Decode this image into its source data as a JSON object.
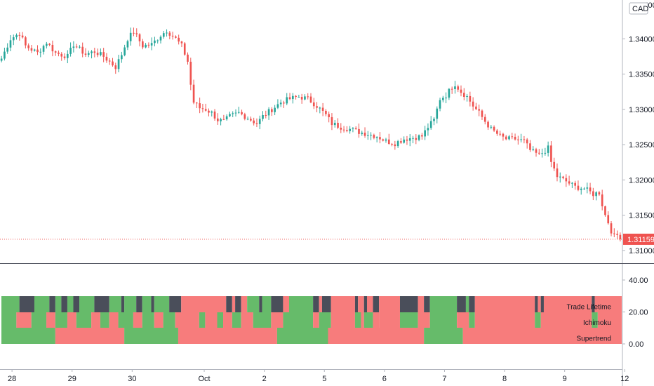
{
  "chart_data": [
    {
      "type": "candlestick",
      "title": "",
      "currency_label": "CAD",
      "price_axis": {
        "ticks": [
          1.31,
          1.315,
          1.32,
          1.325,
          1.33,
          1.335,
          1.34
        ],
        "tick_labels": [
          "1.31000",
          "1.31500",
          "1.32000",
          "1.32500",
          "1.33000",
          "1.33500",
          "1.34000"
        ],
        "partial_top_label": "1.34500",
        "ylim": [
          1.3085,
          1.3455
        ]
      },
      "last_price": 1.31159,
      "last_price_label": "1.31159",
      "time_axis": {
        "labels": [
          "28",
          "29",
          "30",
          "Oct",
          "2",
          "5",
          "6",
          "7",
          "8",
          "9",
          "12"
        ],
        "label_index": [
          4,
          24,
          44,
          68,
          88,
          108,
          128,
          148,
          168,
          188,
          208
        ]
      },
      "candle_count": 207,
      "close_anchors": [
        [
          0,
          1.3372
        ],
        [
          3,
          1.34
        ],
        [
          6,
          1.3408
        ],
        [
          8,
          1.339
        ],
        [
          12,
          1.338
        ],
        [
          15,
          1.3395
        ],
        [
          18,
          1.338
        ],
        [
          22,
          1.3375
        ],
        [
          24,
          1.3392
        ],
        [
          28,
          1.3378
        ],
        [
          31,
          1.3382
        ],
        [
          34,
          1.3375
        ],
        [
          38,
          1.336
        ],
        [
          40,
          1.3378
        ],
        [
          42,
          1.34
        ],
        [
          44,
          1.341
        ],
        [
          47,
          1.339
        ],
        [
          50,
          1.3392
        ],
        [
          53,
          1.3405
        ],
        [
          55,
          1.3412
        ],
        [
          58,
          1.34
        ],
        [
          60,
          1.339
        ],
        [
          62,
          1.3368
        ],
        [
          63,
          1.3335
        ],
        [
          64,
          1.331
        ],
        [
          66,
          1.3302
        ],
        [
          68,
          1.33
        ],
        [
          70,
          1.3295
        ],
        [
          72,
          1.3285
        ],
        [
          74,
          1.3283
        ],
        [
          76,
          1.329
        ],
        [
          79,
          1.3295
        ],
        [
          82,
          1.3288
        ],
        [
          85,
          1.328
        ],
        [
          87,
          1.329
        ],
        [
          90,
          1.33
        ],
        [
          93,
          1.331
        ],
        [
          96,
          1.3315
        ],
        [
          99,
          1.3318
        ],
        [
          102,
          1.3315
        ],
        [
          105,
          1.3305
        ],
        [
          108,
          1.3292
        ],
        [
          110,
          1.328
        ],
        [
          113,
          1.3275
        ],
        [
          116,
          1.3272
        ],
        [
          119,
          1.3268
        ],
        [
          122,
          1.3265
        ],
        [
          125,
          1.3262
        ],
        [
          128,
          1.3255
        ],
        [
          131,
          1.3252
        ],
        [
          134,
          1.3258
        ],
        [
          137,
          1.326
        ],
        [
          140,
          1.3262
        ],
        [
          142,
          1.3275
        ],
        [
          144,
          1.3285
        ],
        [
          146,
          1.3315
        ],
        [
          148,
          1.332
        ],
        [
          150,
          1.3332
        ],
        [
          151,
          1.3336
        ],
        [
          153,
          1.3325
        ],
        [
          155,
          1.3318
        ],
        [
          157,
          1.3305
        ],
        [
          159,
          1.3295
        ],
        [
          161,
          1.3283
        ],
        [
          163,
          1.3272
        ],
        [
          166,
          1.3262
        ],
        [
          168,
          1.3258
        ],
        [
          171,
          1.3258
        ],
        [
          174,
          1.3255
        ],
        [
          176,
          1.3242
        ],
        [
          179,
          1.3235
        ],
        [
          182,
          1.3245
        ],
        [
          183,
          1.3225
        ],
        [
          185,
          1.3205
        ],
        [
          188,
          1.3198
        ],
        [
          191,
          1.319
        ],
        [
          194,
          1.3188
        ],
        [
          197,
          1.318
        ],
        [
          199,
          1.3182
        ],
        [
          200,
          1.3165
        ],
        [
          201,
          1.315
        ],
        [
          202,
          1.314
        ],
        [
          203,
          1.3128
        ],
        [
          204,
          1.312
        ],
        [
          205,
          1.3122
        ],
        [
          206,
          1.3116
        ]
      ],
      "indicator": {
        "axis_ticks": [
          40,
          20,
          0
        ],
        "axis_labels": [
          "40.00",
          "20.00",
          "0.00"
        ],
        "rows": [
          "Trade Lifetime",
          "Ichimoku",
          "Supertrend"
        ],
        "colors": {
          "green": "#66bb6a",
          "red": "#f77c7c",
          "gray": "#4a4e5a"
        },
        "segments": {
          "Trade Lifetime": [
            [
              0,
              6,
              "green"
            ],
            [
              6,
              11,
              "gray"
            ],
            [
              11,
              16,
              "green"
            ],
            [
              16,
              18,
              "gray"
            ],
            [
              18,
              20,
              "green"
            ],
            [
              20,
              22,
              "gray"
            ],
            [
              22,
              24,
              "green"
            ],
            [
              24,
              26,
              "gray"
            ],
            [
              26,
              31,
              "green"
            ],
            [
              31,
              36,
              "gray"
            ],
            [
              36,
              40,
              "green"
            ],
            [
              40,
              41,
              "gray"
            ],
            [
              41,
              45,
              "green"
            ],
            [
              45,
              47,
              "gray"
            ],
            [
              47,
              50,
              "green"
            ],
            [
              50,
              51,
              "gray"
            ],
            [
              51,
              56,
              "green"
            ],
            [
              56,
              60,
              "gray"
            ],
            [
              60,
              75,
              "red"
            ],
            [
              75,
              77,
              "gray"
            ],
            [
              77,
              78,
              "red"
            ],
            [
              78,
              80,
              "gray"
            ],
            [
              80,
              82,
              "red"
            ],
            [
              82,
              86,
              "green"
            ],
            [
              86,
              87,
              "gray"
            ],
            [
              87,
              90,
              "green"
            ],
            [
              90,
              94,
              "gray"
            ],
            [
              94,
              96,
              "red"
            ],
            [
              96,
              104,
              "green"
            ],
            [
              104,
              106,
              "gray"
            ],
            [
              106,
              107,
              "red"
            ],
            [
              107,
              110,
              "gray"
            ],
            [
              110,
              118,
              "red"
            ],
            [
              118,
              119,
              "gray"
            ],
            [
              119,
              121,
              "red"
            ],
            [
              121,
              122,
              "gray"
            ],
            [
              122,
              124,
              "red"
            ],
            [
              124,
              126,
              "gray"
            ],
            [
              126,
              133,
              "red"
            ],
            [
              133,
              139,
              "gray"
            ],
            [
              139,
              141,
              "red"
            ],
            [
              141,
              143,
              "gray"
            ],
            [
              143,
              152,
              "green"
            ],
            [
              152,
              155,
              "gray"
            ],
            [
              155,
              156,
              "green"
            ],
            [
              156,
              158,
              "gray"
            ],
            [
              158,
              178,
              "red"
            ],
            [
              178,
              179,
              "gray"
            ],
            [
              179,
              180,
              "red"
            ],
            [
              180,
              181,
              "gray"
            ],
            [
              181,
              197,
              "red"
            ],
            [
              197,
              198,
              "gray"
            ],
            [
              198,
              207,
              "red"
            ]
          ],
          "Ichimoku": [
            [
              0,
              5,
              "green"
            ],
            [
              5,
              10,
              "red"
            ],
            [
              10,
              15,
              "green"
            ],
            [
              15,
              18,
              "red"
            ],
            [
              18,
              22,
              "green"
            ],
            [
              22,
              25,
              "red"
            ],
            [
              25,
              30,
              "green"
            ],
            [
              30,
              33,
              "red"
            ],
            [
              33,
              36,
              "green"
            ],
            [
              36,
              39,
              "red"
            ],
            [
              39,
              44,
              "green"
            ],
            [
              44,
              47,
              "red"
            ],
            [
              47,
              51,
              "green"
            ],
            [
              51,
              54,
              "red"
            ],
            [
              54,
              58,
              "green"
            ],
            [
              58,
              66,
              "red"
            ],
            [
              66,
              68,
              "green"
            ],
            [
              68,
              72,
              "red"
            ],
            [
              72,
              74,
              "green"
            ],
            [
              74,
              77,
              "red"
            ],
            [
              77,
              80,
              "green"
            ],
            [
              80,
              84,
              "red"
            ],
            [
              84,
              90,
              "green"
            ],
            [
              90,
              94,
              "red"
            ],
            [
              94,
              104,
              "green"
            ],
            [
              104,
              106,
              "red"
            ],
            [
              106,
              110,
              "green"
            ],
            [
              110,
              118,
              "red"
            ],
            [
              118,
              120,
              "green"
            ],
            [
              120,
              121,
              "red"
            ],
            [
              121,
              124,
              "green"
            ],
            [
              124,
              126,
              "red"
            ],
            [
              126,
              133,
              "red"
            ],
            [
              133,
              139,
              "green"
            ],
            [
              139,
              143,
              "red"
            ],
            [
              143,
              152,
              "green"
            ],
            [
              152,
              156,
              "red"
            ],
            [
              156,
              158,
              "green"
            ],
            [
              158,
              178,
              "red"
            ],
            [
              178,
              180,
              "green"
            ],
            [
              180,
              197,
              "red"
            ],
            [
              197,
              199,
              "green"
            ],
            [
              199,
              207,
              "red"
            ]
          ],
          "Supertrend": [
            [
              0,
              18,
              "green"
            ],
            [
              18,
              41,
              "red"
            ],
            [
              41,
              59,
              "green"
            ],
            [
              59,
              92,
              "red"
            ],
            [
              92,
              109,
              "green"
            ],
            [
              109,
              141,
              "red"
            ],
            [
              141,
              154,
              "green"
            ],
            [
              154,
              207,
              "red"
            ]
          ]
        }
      }
    }
  ]
}
